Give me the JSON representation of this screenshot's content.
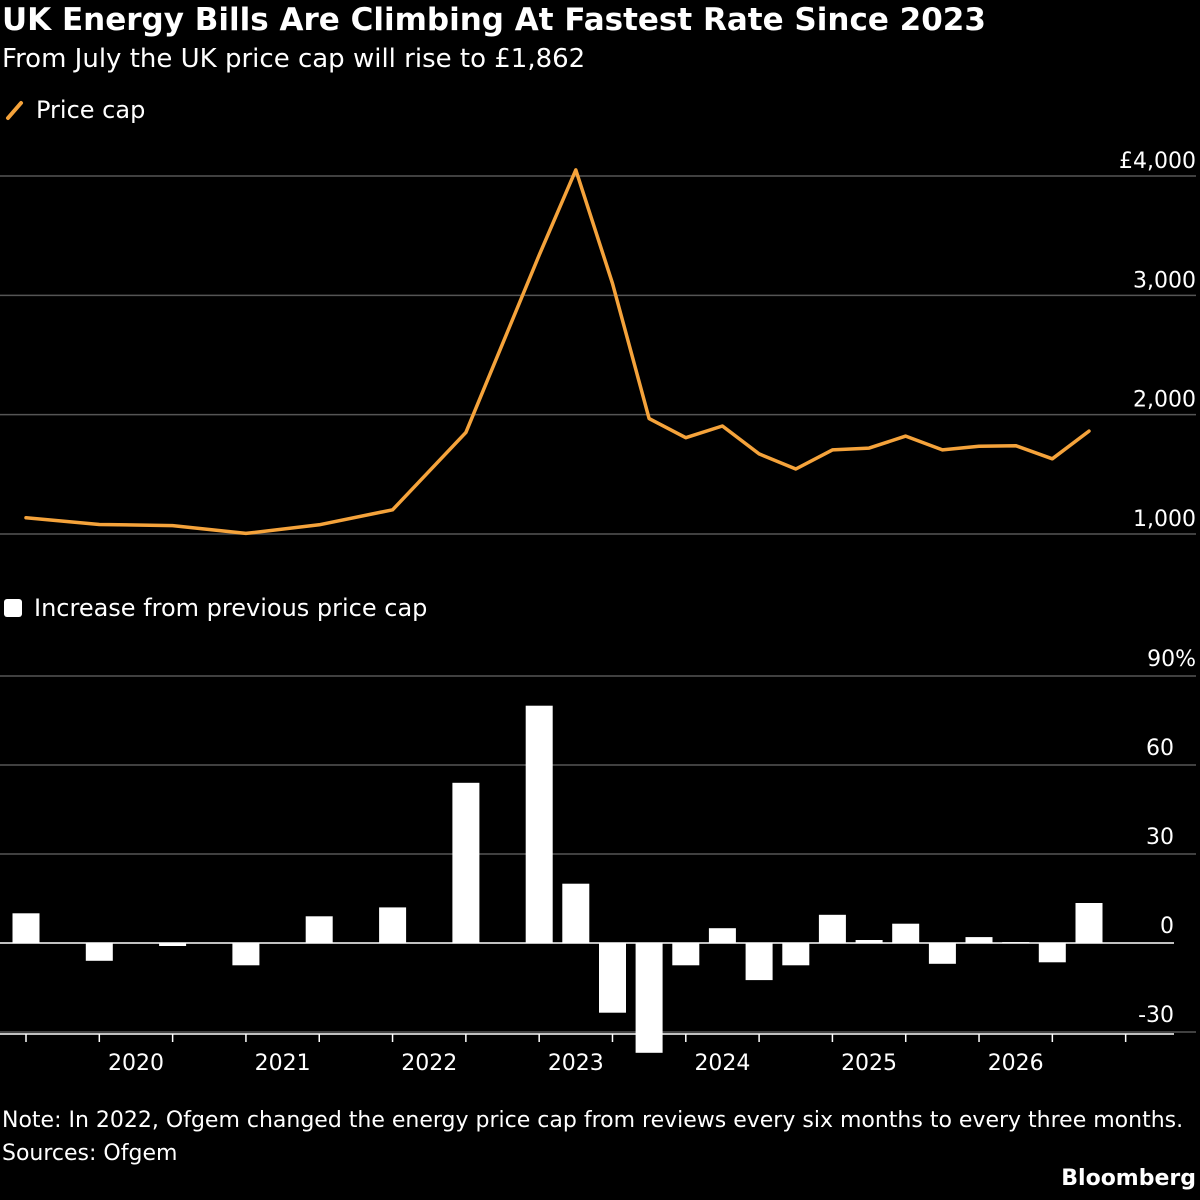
{
  "title": "UK Energy Bills Are Climbing At Fastest Rate Since 2023",
  "subtitle": "From July the UK price cap will rise to £1,862",
  "note": "Note: In 2022, Ofgem changed the energy price cap from reviews every six months to every three months.",
  "sources": "Sources: Ofgem",
  "brand": "Bloomberg",
  "colors": {
    "background": "#000000",
    "line": "#f5a33b",
    "bar": "#ffffff",
    "grid": "#555555",
    "text": "#ffffff"
  },
  "chart_data": [
    {
      "type": "line",
      "legend": "Price cap",
      "series": [
        {
          "name": "Price cap",
          "points": [
            {
              "x": "2019-04-01",
              "y": 1137
            },
            {
              "x": "2019-10-01",
              "y": 1080
            },
            {
              "x": "2020-04-01",
              "y": 1070
            },
            {
              "x": "2020-10-01",
              "y": 1005
            },
            {
              "x": "2021-04-01",
              "y": 1077
            },
            {
              "x": "2021-10-01",
              "y": 1203
            },
            {
              "x": "2022-04-01",
              "y": 1851
            },
            {
              "x": "2022-10-01",
              "y": 3337
            },
            {
              "x": "2023-01-01",
              "y": 4051
            },
            {
              "x": "2023-04-01",
              "y": 3100
            },
            {
              "x": "2023-07-01",
              "y": 1967
            },
            {
              "x": "2023-10-01",
              "y": 1807
            },
            {
              "x": "2024-01-01",
              "y": 1905
            },
            {
              "x": "2024-04-01",
              "y": 1671
            },
            {
              "x": "2024-07-01",
              "y": 1545
            },
            {
              "x": "2024-10-01",
              "y": 1705
            },
            {
              "x": "2025-01-01",
              "y": 1720
            },
            {
              "x": "2025-04-01",
              "y": 1820
            },
            {
              "x": "2025-07-01",
              "y": 1705
            },
            {
              "x": "2025-10-01",
              "y": 1735
            },
            {
              "x": "2026-01-01",
              "y": 1740
            },
            {
              "x": "2026-04-01",
              "y": 1630
            },
            {
              "x": "2026-07-01",
              "y": 1862
            }
          ]
        }
      ],
      "yticks": [
        {
          "value": 1000,
          "label": "1,000"
        },
        {
          "value": 2000,
          "label": "2,000"
        },
        {
          "value": 3000,
          "label": "3,000"
        },
        {
          "value": 4000,
          "label": "£4,000"
        }
      ],
      "ylim": [
        1000,
        4000
      ],
      "grid": true
    },
    {
      "type": "bar",
      "legend": "Increase from previous price cap",
      "series": [
        {
          "name": "Increase from previous price cap",
          "points": [
            {
              "x": "2019-04-01",
              "y": 10
            },
            {
              "x": "2019-10-01",
              "y": -6
            },
            {
              "x": "2020-04-01",
              "y": -1
            },
            {
              "x": "2020-10-01",
              "y": -7.5
            },
            {
              "x": "2021-04-01",
              "y": 9
            },
            {
              "x": "2021-10-01",
              "y": 12
            },
            {
              "x": "2022-04-01",
              "y": 54
            },
            {
              "x": "2022-10-01",
              "y": 80
            },
            {
              "x": "2023-01-01",
              "y": 20
            },
            {
              "x": "2023-04-01",
              "y": -23.5
            },
            {
              "x": "2023-07-01",
              "y": -37
            },
            {
              "x": "2023-10-01",
              "y": -7.5
            },
            {
              "x": "2024-01-01",
              "y": 5
            },
            {
              "x": "2024-04-01",
              "y": -12.5
            },
            {
              "x": "2024-07-01",
              "y": -7.5
            },
            {
              "x": "2024-10-01",
              "y": 9.5
            },
            {
              "x": "2025-01-01",
              "y": 1
            },
            {
              "x": "2025-04-01",
              "y": 6.5
            },
            {
              "x": "2025-07-01",
              "y": -7
            },
            {
              "x": "2025-10-01",
              "y": 2
            },
            {
              "x": "2026-01-01",
              "y": 0.3
            },
            {
              "x": "2026-04-01",
              "y": -6.5
            },
            {
              "x": "2026-07-01",
              "y": 13.5
            }
          ]
        }
      ],
      "yticks": [
        {
          "value": -30,
          "label": "-30"
        },
        {
          "value": 0,
          "label": "0"
        },
        {
          "value": 30,
          "label": "30"
        },
        {
          "value": 60,
          "label": "60"
        },
        {
          "value": 90,
          "label": "90%"
        }
      ],
      "ylim": [
        -30,
        90
      ],
      "xticks": [
        "2020",
        "2021",
        "2022",
        "2023",
        "2024",
        "2025",
        "2026"
      ],
      "grid": true
    }
  ]
}
